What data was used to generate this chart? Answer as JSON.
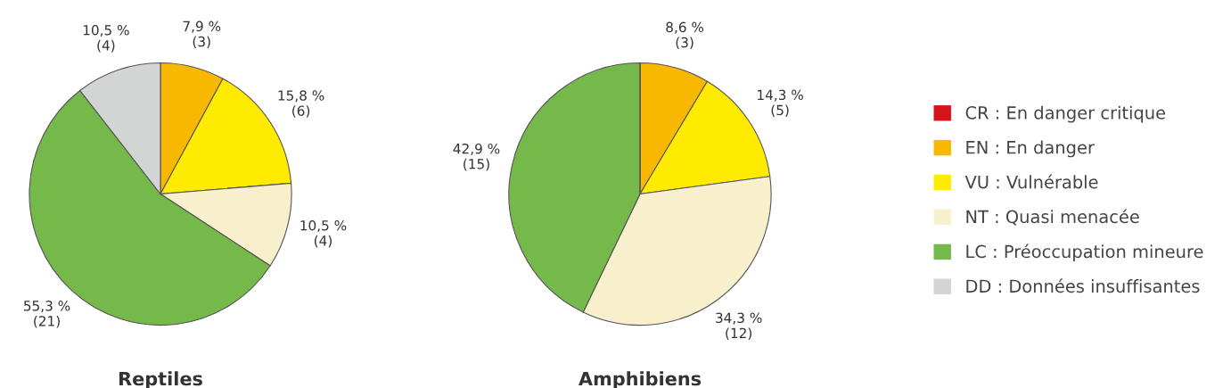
{
  "chart_data": [
    {
      "type": "pie",
      "title": "Reptiles",
      "categories": [
        "CR : En danger critique",
        "EN : En danger",
        "VU : Vulnérable",
        "NT : Quasi menacée",
        "LC : Préoccupation mineure",
        "DD : Données insuffisantes"
      ],
      "values": [
        0,
        3,
        6,
        4,
        21,
        4
      ],
      "value_labels": [
        null,
        "7,9 %\n(3)",
        "15,8 %\n(6)",
        "10,5 %\n(4)",
        "55,3 %\n(21)",
        "10,5 %\n(4)"
      ],
      "colors": [
        "#d7141a",
        "#f9b800",
        "#ffeb00",
        "#f8f0cc",
        "#76b94b",
        "#d3d4d4"
      ],
      "legend": "right"
    },
    {
      "type": "pie",
      "title": "Amphibiens",
      "categories": [
        null,
        null,
        null,
        null,
        null,
        null
      ],
      "values": [
        0,
        3,
        5,
        12,
        15,
        0
      ],
      "value_labels": [
        null,
        "8,6 %\n(3)",
        "14,3 %\n(5)",
        "34,3 %\n(12)",
        "42,9 %\n(15)",
        null
      ],
      "colors": [
        "#d7141a",
        "#f9b800",
        "#ffeb00",
        "#f8f0cc",
        "#76b94b",
        "#d3d4d4"
      ],
      "legend": false
    }
  ]
}
